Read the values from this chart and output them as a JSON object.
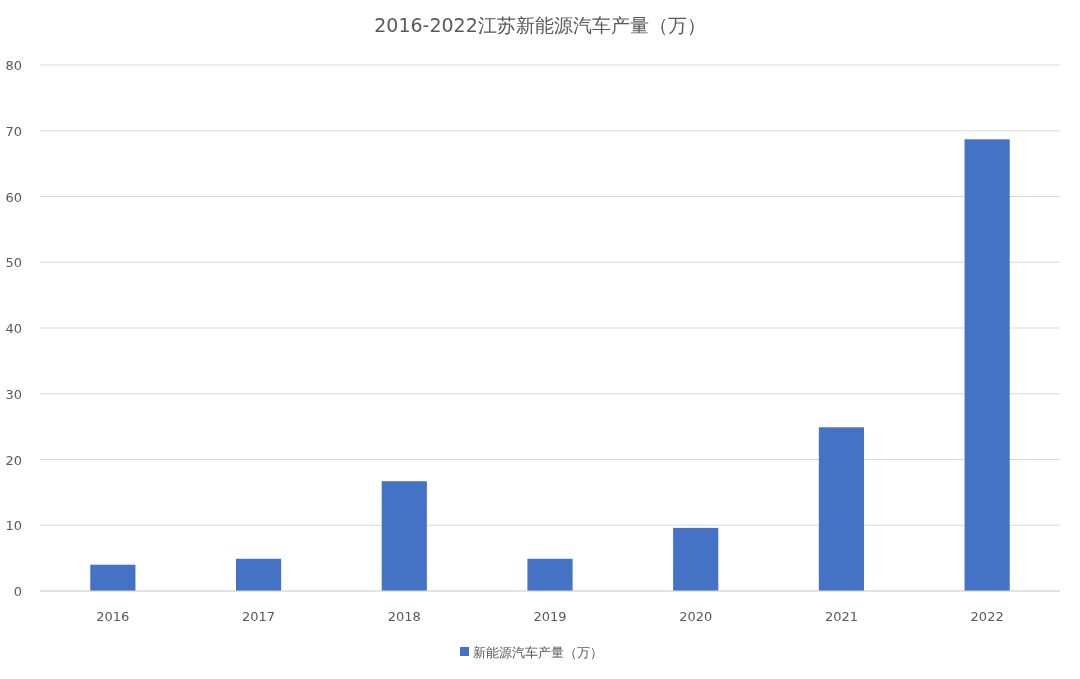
{
  "chart_data": {
    "type": "bar",
    "title": "2016-2022江苏新能源汽车产量（万）",
    "categories": [
      "2016",
      "2017",
      "2018",
      "2019",
      "2020",
      "2021",
      "2022"
    ],
    "series": [
      {
        "name": "新能源汽车产量（万）",
        "color": "#4472c4",
        "values": [
          4.0,
          4.9,
          16.7,
          4.9,
          9.6,
          24.9,
          68.7
        ]
      }
    ],
    "ylim": [
      0,
      80
    ],
    "yticks": [
      0,
      10,
      20,
      30,
      40,
      50,
      60,
      70,
      80
    ],
    "grid": "y",
    "legend": "bottom"
  }
}
